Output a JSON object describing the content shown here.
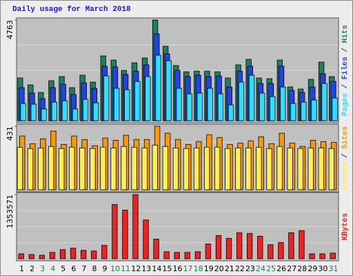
{
  "chart_data": [
    {
      "type": "bar",
      "title": "Daily usage for March 2018",
      "categories": [
        "1",
        "2",
        "3",
        "4",
        "5",
        "6",
        "7",
        "8",
        "9",
        "10",
        "11",
        "12",
        "13",
        "14",
        "15",
        "16",
        "17",
        "18",
        "19",
        "20",
        "21",
        "22",
        "23",
        "24",
        "25",
        "26",
        "27",
        "28",
        "29",
        "30",
        "31"
      ],
      "category_colors": [
        "#000000",
        "#000000",
        "#1a7a5a",
        "#1a7a5a",
        "#000000",
        "#000000",
        "#000000",
        "#000000",
        "#000000",
        "#1a7a5a",
        "#1a7a5a",
        "#000000",
        "#000000",
        "#000000",
        "#000000",
        "#000000",
        "#1a7a5a",
        "#1a7a5a",
        "#000000",
        "#000000",
        "#000000",
        "#000000",
        "#000000",
        "#1a7a5a",
        "#1a7a5a",
        "#000000",
        "#000000",
        "#000000",
        "#000000",
        "#000000",
        "#1a7a5a"
      ],
      "legend_separator": " / ",
      "ylim": [
        0,
        4763
      ],
      "yticks": [
        4763
      ],
      "series": [
        {
          "name": "Hits",
          "color": "#1f7f5f",
          "values": [
            2023,
            1696,
            1337,
            1892,
            2088,
            1566,
            2153,
            1827,
            3066,
            2871,
            2381,
            2740,
            2968,
            4763,
            3523,
            2610,
            2316,
            2349,
            2349,
            2316,
            2022,
            2642,
            2903,
            2022,
            1990,
            2871,
            1598,
            1501,
            1957,
            2773,
            2088
          ]
        },
        {
          "name": "Files",
          "color": "#2244dd",
          "values": [
            1566,
            1305,
            1044,
            1566,
            1729,
            1240,
            1794,
            1533,
            2577,
            2544,
            2186,
            2349,
            2642,
            4110,
            3164,
            2381,
            2088,
            2153,
            2088,
            2120,
            1598,
            2349,
            2577,
            1761,
            1761,
            2577,
            1435,
            1337,
            1598,
            2218,
            1859
          ]
        },
        {
          "name": "Pages",
          "color": "#33ddff",
          "values": [
            816,
            783,
            555,
            881,
            946,
            555,
            1011,
            848,
            2120,
            1533,
            1468,
            1859,
            2088,
            3099,
            2838,
            1533,
            1272,
            1305,
            1533,
            1272,
            750,
            1827,
            2153,
            1305,
            1142,
            1598,
            816,
            881,
            979,
            1761,
            1077
          ]
        }
      ]
    },
    {
      "type": "bar",
      "ylim": [
        0,
        431
      ],
      "yticks": [
        431
      ],
      "series": [
        {
          "name": "Sites",
          "color": "#ff9900",
          "values": [
            365,
            313,
            346,
            398,
            308,
            365,
            341,
            299,
            351,
            336,
            370,
            341,
            341,
            431,
            384,
            341,
            308,
            327,
            374,
            355,
            308,
            318,
            332,
            360,
            313,
            384,
            318,
            294,
            336,
            327,
            322
          ]
        },
        {
          "name": "Visits",
          "color": "#ffee55",
          "values": [
            289,
            280,
            284,
            294,
            280,
            289,
            284,
            280,
            289,
            284,
            294,
            289,
            284,
            303,
            294,
            284,
            280,
            284,
            289,
            289,
            280,
            284,
            284,
            289,
            280,
            294,
            284,
            280,
            284,
            284,
            280
          ]
        }
      ]
    },
    {
      "type": "bar",
      "ylim": [
        0,
        1353571
      ],
      "yticks": [
        1353571
      ],
      "series": [
        {
          "name": "KBytes",
          "color": "#ee2222",
          "values": [
            104000,
            89000,
            74000,
            134000,
            193000,
            223000,
            178000,
            164000,
            283000,
            1145000,
            1026000,
            1353571,
            818000,
            416000,
            149000,
            134000,
            134000,
            149000,
            312000,
            491000,
            431000,
            550000,
            535000,
            476000,
            297000,
            342000,
            550000,
            595000,
            104000,
            104000,
            119000
          ]
        }
      ]
    }
  ]
}
